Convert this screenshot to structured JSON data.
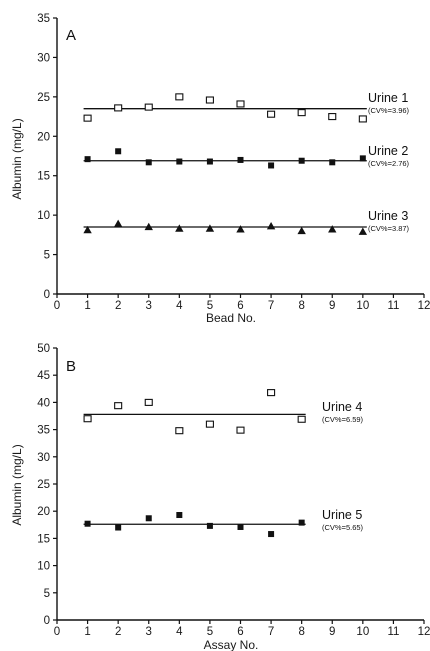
{
  "chart_data": [
    {
      "type": "scatter",
      "panel_label": "A",
      "xlabel": "Bead No.",
      "ylabel": "Albumin (mg/L)",
      "xlim": [
        0,
        12
      ],
      "ylim": [
        0,
        35
      ],
      "xticks": [
        0,
        1,
        2,
        3,
        4,
        5,
        6,
        7,
        8,
        9,
        10,
        11,
        12
      ],
      "yticks": [
        0,
        5,
        10,
        15,
        20,
        25,
        30,
        35
      ],
      "series": [
        {
          "name": "Urine 1",
          "cv": "(CV%=3.96)",
          "marker": "open-square",
          "mean": 23.5,
          "x": [
            1,
            2,
            3,
            4,
            5,
            6,
            7,
            8,
            9,
            10
          ],
          "y": [
            22.3,
            23.6,
            23.7,
            25.0,
            24.6,
            24.1,
            22.8,
            23.0,
            22.5,
            22.2
          ]
        },
        {
          "name": "Urine 2",
          "cv": "(CV%=2.76)",
          "marker": "filled-square",
          "mean": 16.9,
          "x": [
            1,
            2,
            3,
            4,
            5,
            6,
            7,
            8,
            9,
            10
          ],
          "y": [
            17.1,
            18.1,
            16.7,
            16.8,
            16.8,
            17.0,
            16.3,
            16.9,
            16.7,
            17.2
          ]
        },
        {
          "name": "Urine 3",
          "cv": "(CV%=3.87)",
          "marker": "filled-triangle",
          "mean": 8.5,
          "x": [
            1,
            2,
            3,
            4,
            5,
            6,
            7,
            8,
            9,
            10
          ],
          "y": [
            8.1,
            8.9,
            8.5,
            8.3,
            8.3,
            8.2,
            8.6,
            8.0,
            8.2,
            7.9
          ]
        }
      ]
    },
    {
      "type": "scatter",
      "panel_label": "B",
      "xlabel": "Assay No.",
      "ylabel": "Albumin (mg/L)",
      "xlim": [
        0,
        12
      ],
      "ylim": [
        0,
        50
      ],
      "xticks": [
        0,
        1,
        2,
        3,
        4,
        5,
        6,
        7,
        8,
        9,
        10,
        11,
        12
      ],
      "yticks": [
        0,
        5,
        10,
        15,
        20,
        25,
        30,
        35,
        40,
        45,
        50
      ],
      "series": [
        {
          "name": "Urine 4",
          "cv": "(CV%=6.59)",
          "marker": "open-square",
          "mean": 37.8,
          "x": [
            1,
            2,
            3,
            4,
            5,
            6,
            7,
            8
          ],
          "y": [
            37.0,
            39.4,
            40.0,
            34.8,
            36.0,
            34.9,
            41.8,
            36.9
          ]
        },
        {
          "name": "Urine 5",
          "cv": "(CV%=5.65)",
          "marker": "filled-square",
          "mean": 17.6,
          "x": [
            1,
            2,
            3,
            4,
            5,
            6,
            7,
            8
          ],
          "y": [
            17.7,
            17.0,
            18.7,
            19.3,
            17.3,
            17.1,
            15.8,
            17.9
          ]
        }
      ]
    }
  ]
}
